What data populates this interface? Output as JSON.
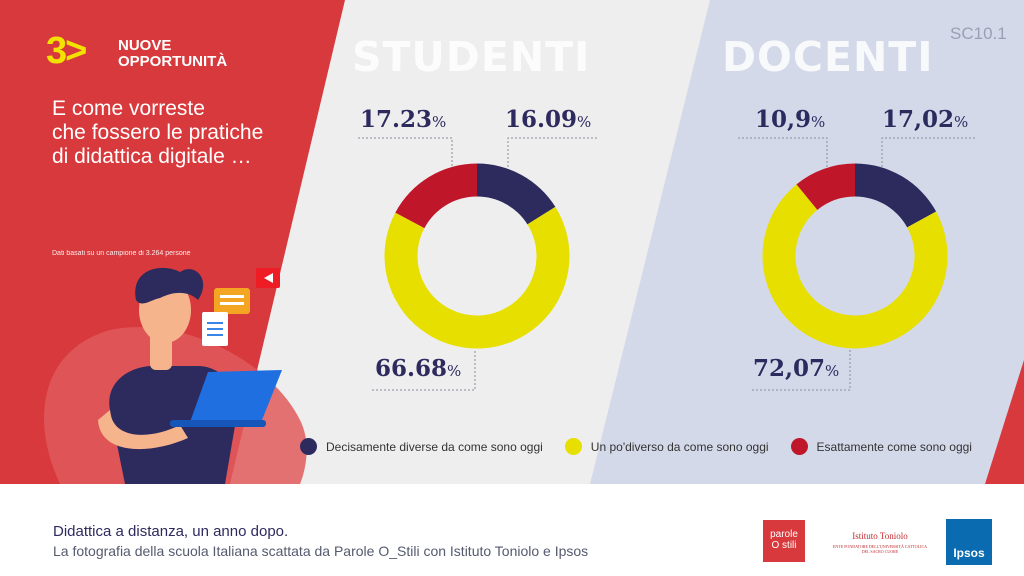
{
  "header": {
    "logo_number": "3>",
    "logo_line1": "NUOVE",
    "logo_line2": "OPPORTUNITÀ",
    "slide_code": "SC10.1",
    "question_line1": "E come vorreste",
    "question_line2": "che fossero le pratiche",
    "question_line3": "di didattica digitale …",
    "sample_note": "Dati basati su un campione di 3.264 persone"
  },
  "colors": {
    "red": "#d8393c",
    "navy": "#2d2a5e",
    "yellow": "#e6df00",
    "crimson": "#c0162a",
    "lilac": "#d4d9ea",
    "grey": "#eeeeee"
  },
  "chart_data": [
    {
      "type": "pie",
      "title": "STUDENTI",
      "categories": [
        "Decisamente diverse da come sono oggi",
        "Un po' diverso da come sono oggi",
        "Esattamente come sono oggi"
      ],
      "values": [
        16.09,
        66.68,
        17.23
      ],
      "labels": [
        "16.09",
        "66.68",
        "17.23"
      ],
      "unit": "%"
    },
    {
      "type": "pie",
      "title": "DOCENTI",
      "categories": [
        "Decisamente diverse da come sono oggi",
        "Un po' diverso da come sono oggi",
        "Esattamente come sono oggi"
      ],
      "values": [
        17.02,
        72.07,
        10.9
      ],
      "labels": [
        "17,02",
        "72,07",
        "10,9"
      ],
      "unit": "%"
    }
  ],
  "legend": {
    "item1": "Decisamente diverse da come sono oggi",
    "item2": "Un po'diverso da come sono oggi",
    "item3": "Esattamente come sono oggi"
  },
  "footer": {
    "title": "Didattica a distanza, un anno dopo.",
    "subtitle": "La fotografia della scuola Italiana scattata da Parole O_Stili con Istituto Toniolo e Ipsos",
    "logo1_line1": "parole",
    "logo1_line2": "O stili",
    "logo2": "Istituto Toniolo",
    "logo2_sub": "ENTE FONDATORE DELL'UNIVERSITÀ CATTOLICA DEL SACRO CUORE",
    "logo3": "Ipsos"
  }
}
